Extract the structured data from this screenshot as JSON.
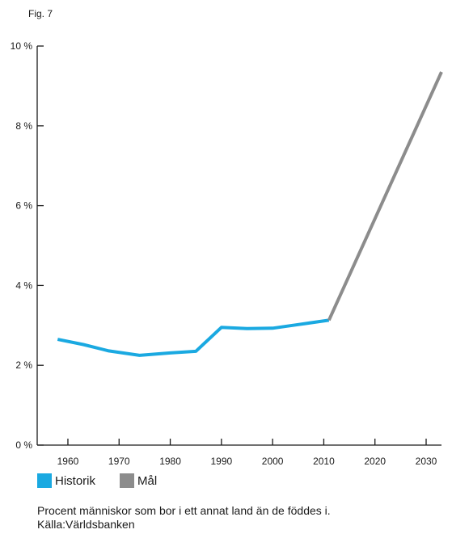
{
  "figure_label": "Fig. 7",
  "colors": {
    "historik": "#1aa9e1",
    "mal": "#8c8c8c",
    "axis": "#1a1a1a"
  },
  "caption": {
    "line1": "Procent människor som bor i ett annat land än de föddes i.",
    "line2": "Källa:Världsbanken"
  },
  "chart_data": {
    "type": "line",
    "title": "",
    "xlabel": "",
    "ylabel": "",
    "xlim": [
      1954,
      2033
    ],
    "ylim": [
      0,
      10
    ],
    "x_ticks": [
      1960,
      1970,
      1980,
      1990,
      2000,
      2010,
      2020,
      2030
    ],
    "x_tick_labels": [
      "1960",
      "1970",
      "1980",
      "1990",
      "2000",
      "2010",
      "2020",
      "2030"
    ],
    "y_ticks": [
      0,
      2,
      4,
      6,
      8,
      10
    ],
    "y_tick_labels": [
      "0 %",
      "2 %",
      "4 %",
      "6 %",
      "8 %",
      "10 %"
    ],
    "grid": false,
    "legend_position": "bottom-left",
    "series": [
      {
        "name": "Historik",
        "color": "#1aa9e1",
        "x": [
          1958,
          1963,
          1968,
          1974,
          1980,
          1985,
          1990,
          1995,
          2000,
          2005,
          2011
        ],
        "y": [
          2.65,
          2.52,
          2.36,
          2.25,
          2.31,
          2.35,
          2.95,
          2.92,
          2.93,
          3.02,
          3.13
        ]
      },
      {
        "name": "Mål",
        "color": "#8c8c8c",
        "x": [
          2011,
          2033
        ],
        "y": [
          3.13,
          9.35
        ]
      }
    ]
  }
}
